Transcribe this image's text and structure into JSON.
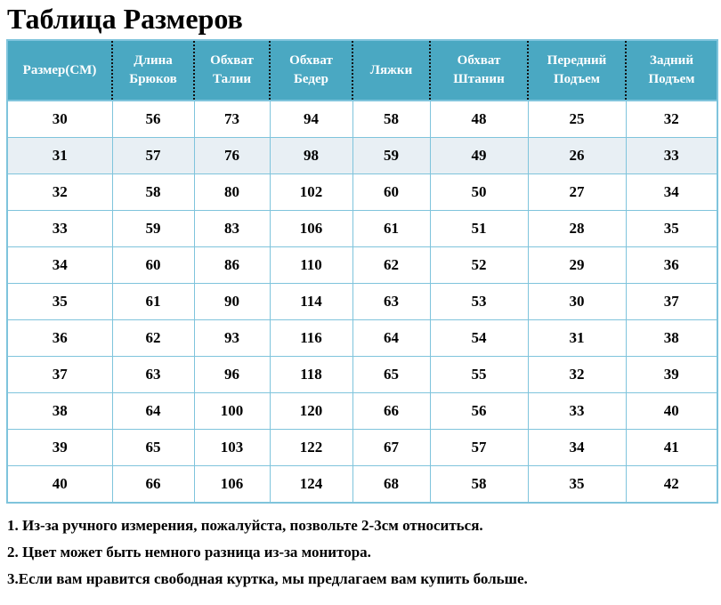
{
  "title": "Таблица Размеров",
  "table": {
    "headers": [
      "Размер(СМ)",
      "Длина Брюков",
      "Обхват Талии",
      "Обхват Бедер",
      "Ляжки",
      "Обхват Штанин",
      "Передний Подъем",
      "Задний Подъем"
    ],
    "rows": [
      [
        "30",
        "56",
        "73",
        "94",
        "58",
        "48",
        "25",
        "32"
      ],
      [
        "31",
        "57",
        "76",
        "98",
        "59",
        "49",
        "26",
        "33"
      ],
      [
        "32",
        "58",
        "80",
        "102",
        "60",
        "50",
        "27",
        "34"
      ],
      [
        "33",
        "59",
        "83",
        "106",
        "61",
        "51",
        "28",
        "35"
      ],
      [
        "34",
        "60",
        "86",
        "110",
        "62",
        "52",
        "29",
        "36"
      ],
      [
        "35",
        "61",
        "90",
        "114",
        "63",
        "53",
        "30",
        "37"
      ],
      [
        "36",
        "62",
        "93",
        "116",
        "64",
        "54",
        "31",
        "38"
      ],
      [
        "37",
        "63",
        "96",
        "118",
        "65",
        "55",
        "32",
        "39"
      ],
      [
        "38",
        "64",
        "100",
        "120",
        "66",
        "56",
        "33",
        "40"
      ],
      [
        "39",
        "65",
        "103",
        "122",
        "67",
        "57",
        "34",
        "41"
      ],
      [
        "40",
        "66",
        "106",
        "124",
        "68",
        "58",
        "35",
        "42"
      ]
    ],
    "highlighted_row_index": 1
  },
  "notes": [
    "1. Из-за ручного измерения, пожалуйста, позвольте 2-3см относиться.",
    "2. Цвет может быть немного разница из-за монитора.",
    "3.Если вам нравится свободная куртка, мы предлагаем вам купить больше."
  ],
  "colors": {
    "header_bg": "#4aa8c2",
    "header_text": "#ffffff",
    "grid_border": "#7fc4dc",
    "header_divider_dotted": "#111111",
    "highlight_row_bg": "#e8eff4",
    "text": "#000000"
  }
}
